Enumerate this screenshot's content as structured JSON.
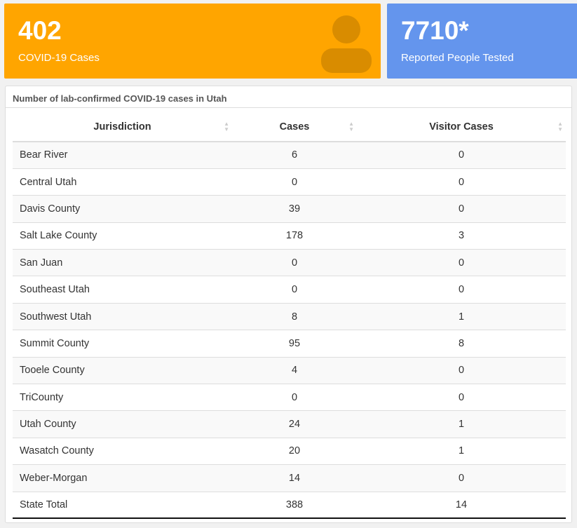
{
  "stats": {
    "cases": {
      "value": "402",
      "label": "COVID-19 Cases",
      "icon": "person-icon",
      "color": "#ffa500"
    },
    "tested": {
      "value": "7710*",
      "label": "Reported People Tested",
      "color": "#6495ed"
    }
  },
  "table": {
    "title": "Number of lab-confirmed COVID-19 cases in Utah",
    "headers": [
      "Jurisdiction",
      "Cases",
      "Visitor Cases"
    ],
    "rows": [
      [
        "Bear River",
        "6",
        "0"
      ],
      [
        "Central Utah",
        "0",
        "0"
      ],
      [
        "Davis County",
        "39",
        "0"
      ],
      [
        "Salt Lake County",
        "178",
        "3"
      ],
      [
        "San Juan",
        "0",
        "0"
      ],
      [
        "Southeast Utah",
        "0",
        "0"
      ],
      [
        "Southwest Utah",
        "8",
        "1"
      ],
      [
        "Summit County",
        "95",
        "8"
      ],
      [
        "Tooele County",
        "4",
        "0"
      ],
      [
        "TriCounty",
        "0",
        "0"
      ],
      [
        "Utah County",
        "24",
        "1"
      ],
      [
        "Wasatch County",
        "20",
        "1"
      ],
      [
        "Weber-Morgan",
        "14",
        "0"
      ]
    ],
    "total": [
      "State Total",
      "388",
      "14"
    ]
  }
}
